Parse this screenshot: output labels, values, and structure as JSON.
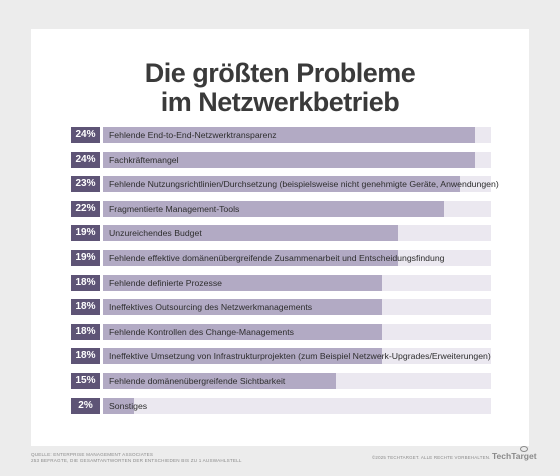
{
  "title_lines": [
    "Die größten Probleme",
    "im Netzwerkbetrieb"
  ],
  "source_lines": [
    "QUELLE: ENTERPRISE MANAGEMENT ASSOCIATES",
    "253 BEFRAGTE, DIE GESAMTANTWORTEN DER ENTSCHIEDEN BIS ZU 1 AUSWAHLSTELL"
  ],
  "copyright": "©2025 TECHTARGET. ALLE RECHTE VORBEHALTEN.",
  "brand": "TechTarget",
  "colors": {
    "badge": "#5e5476",
    "bar": "#b2aac4",
    "track": "#ebe8f0",
    "background": "#ececec",
    "card": "#ffffff"
  },
  "chart_data": {
    "type": "bar",
    "orientation": "horizontal",
    "title": "Die größten Probleme im Netzwerkbetrieb",
    "xlim": [
      0,
      25
    ],
    "value_unit": "%",
    "categories": [
      "Fehlende End-to-End-Netzwerktransparenz",
      "Fachkräftemangel",
      "Fehlende Nutzungsrichtlinien/Durchsetzung (beispielsweise nicht genehmigte Geräte, Anwendungen)",
      "Fragmentierte Management-Tools",
      "Unzureichendes Budget",
      "Fehlende effektive domänenübergreifende Zusammenarbeit und Entscheidungsfindung",
      "Fehlende definierte Prozesse",
      "Ineffektives Outsourcing des Netzwerkmanagements",
      "Fehlende Kontrollen des Change-Managements",
      "Ineffektive Umsetzung von Infrastrukturprojekten (zum Beispiel Netzwerk-Upgrades/Erweiterungen)",
      "Fehlende domänenübergreifende Sichtbarkeit",
      "Sonstiges"
    ],
    "values": [
      24,
      24,
      23,
      22,
      19,
      19,
      18,
      18,
      18,
      18,
      15,
      2
    ],
    "value_labels": [
      "24%",
      "24%",
      "23%",
      "22%",
      "19%",
      "19%",
      "18%",
      "18%",
      "18%",
      "18%",
      "15%",
      "2%"
    ]
  }
}
